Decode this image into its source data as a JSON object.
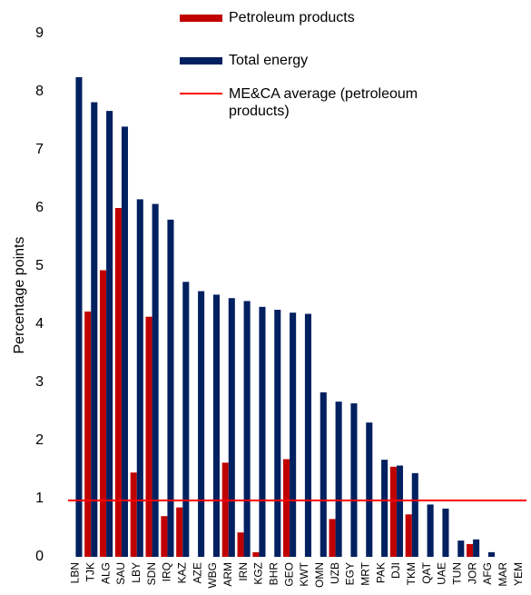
{
  "chart_data": {
    "type": "bar",
    "y_label": "Percentage points",
    "categories": [
      "LBN",
      "TJK",
      "ALG",
      "SAU",
      "LBY",
      "SDN",
      "IRQ",
      "KAZ",
      "AZE",
      "WBG",
      "ARM",
      "IRN",
      "KGZ",
      "BHR",
      "GEO",
      "KWT",
      "OMN",
      "UZB",
      "EGY",
      "MRT",
      "PAK",
      "DJI",
      "TKM",
      "QAT",
      "UAE",
      "TUN",
      "JOR",
      "AFG",
      "MAR",
      "YEM"
    ],
    "series": [
      {
        "name": "Petroleum products",
        "color": "#c00000",
        "values": [
          0,
          4.22,
          4.93,
          6.0,
          1.45,
          4.13,
          0.7,
          0.85,
          0,
          0,
          1.62,
          0.42,
          0.08,
          0,
          1.68,
          0,
          0,
          0.65,
          0,
          0,
          0,
          1.55,
          0.73,
          0,
          0,
          0,
          0.22,
          0,
          0,
          0
        ]
      },
      {
        "name": "Total energy",
        "color": "#002060",
        "values": [
          8.25,
          7.82,
          7.67,
          7.4,
          6.15,
          6.07,
          5.8,
          4.73,
          4.57,
          4.51,
          4.45,
          4.4,
          4.3,
          4.25,
          4.2,
          4.18,
          2.83,
          2.67,
          2.64,
          2.31,
          1.67,
          1.57,
          1.44,
          0.9,
          0.83,
          0.28,
          0.3,
          0.08,
          0,
          0
        ]
      }
    ],
    "average": {
      "name": "ME&CA average (petroleoum products)",
      "color": "#ff0000",
      "value": 0.97
    },
    "ylim": [
      0,
      9
    ],
    "yticks": [
      0,
      1,
      2,
      3,
      4,
      5,
      6,
      7,
      8,
      9
    ],
    "grid": false
  }
}
